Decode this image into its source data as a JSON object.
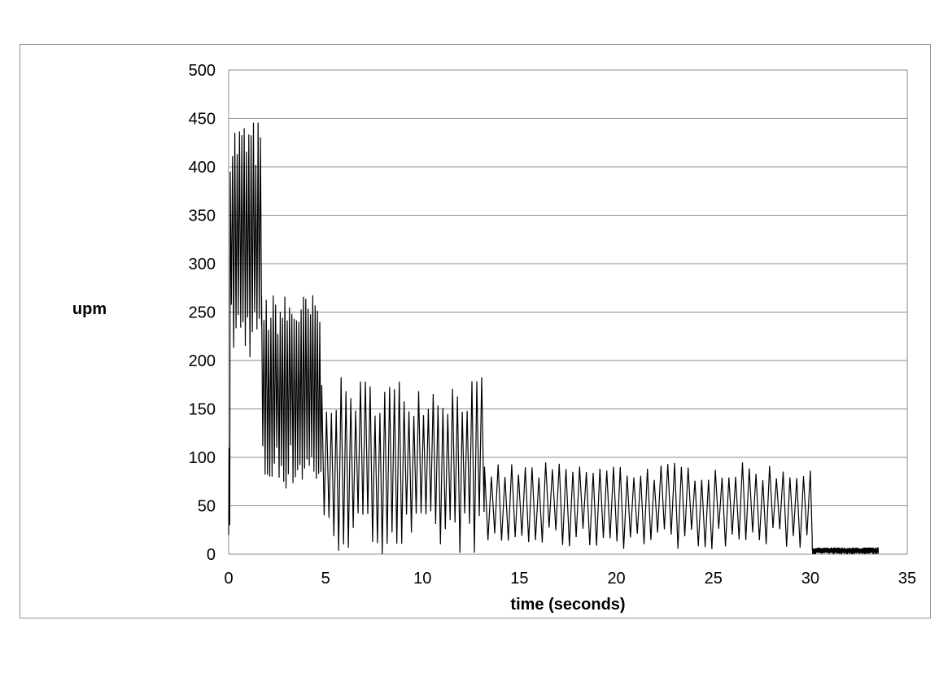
{
  "chart_data": {
    "type": "line",
    "title": "",
    "xlabel": "time (seconds)",
    "ylabel": "upm",
    "xlim": [
      0,
      35
    ],
    "ylim": [
      0,
      500
    ],
    "x_ticks": [
      0,
      5,
      10,
      15,
      20,
      25,
      30,
      35
    ],
    "y_ticks": [
      0,
      50,
      100,
      150,
      200,
      250,
      300,
      350,
      400,
      450,
      500
    ],
    "grid": "horizontal",
    "legend": "none",
    "line_color": "#000000",
    "segments": [
      {
        "label": "",
        "x_start": 0,
        "x_end": 1.7,
        "peak_upm": 450,
        "trough_upm": 200,
        "cycle_s": 0.12
      },
      {
        "label": "",
        "x_start": 1.7,
        "x_end": 4.8,
        "peak_upm": 270,
        "trough_upm": 65,
        "cycle_s": 0.12
      },
      {
        "label": "",
        "x_start": 4.8,
        "x_end": 13.2,
        "peak_upm": 183,
        "trough_upm": 0,
        "cycle_s": 0.25
      },
      {
        "label": "",
        "x_start": 13.2,
        "x_end": 30.1,
        "peak_upm": 95,
        "trough_upm": 5,
        "cycle_s": 0.35
      },
      {
        "label": "",
        "x_start": 30.1,
        "x_end": 33.5,
        "peak_upm": 7,
        "trough_upm": 0,
        "cycle_s": 0.05
      }
    ]
  }
}
